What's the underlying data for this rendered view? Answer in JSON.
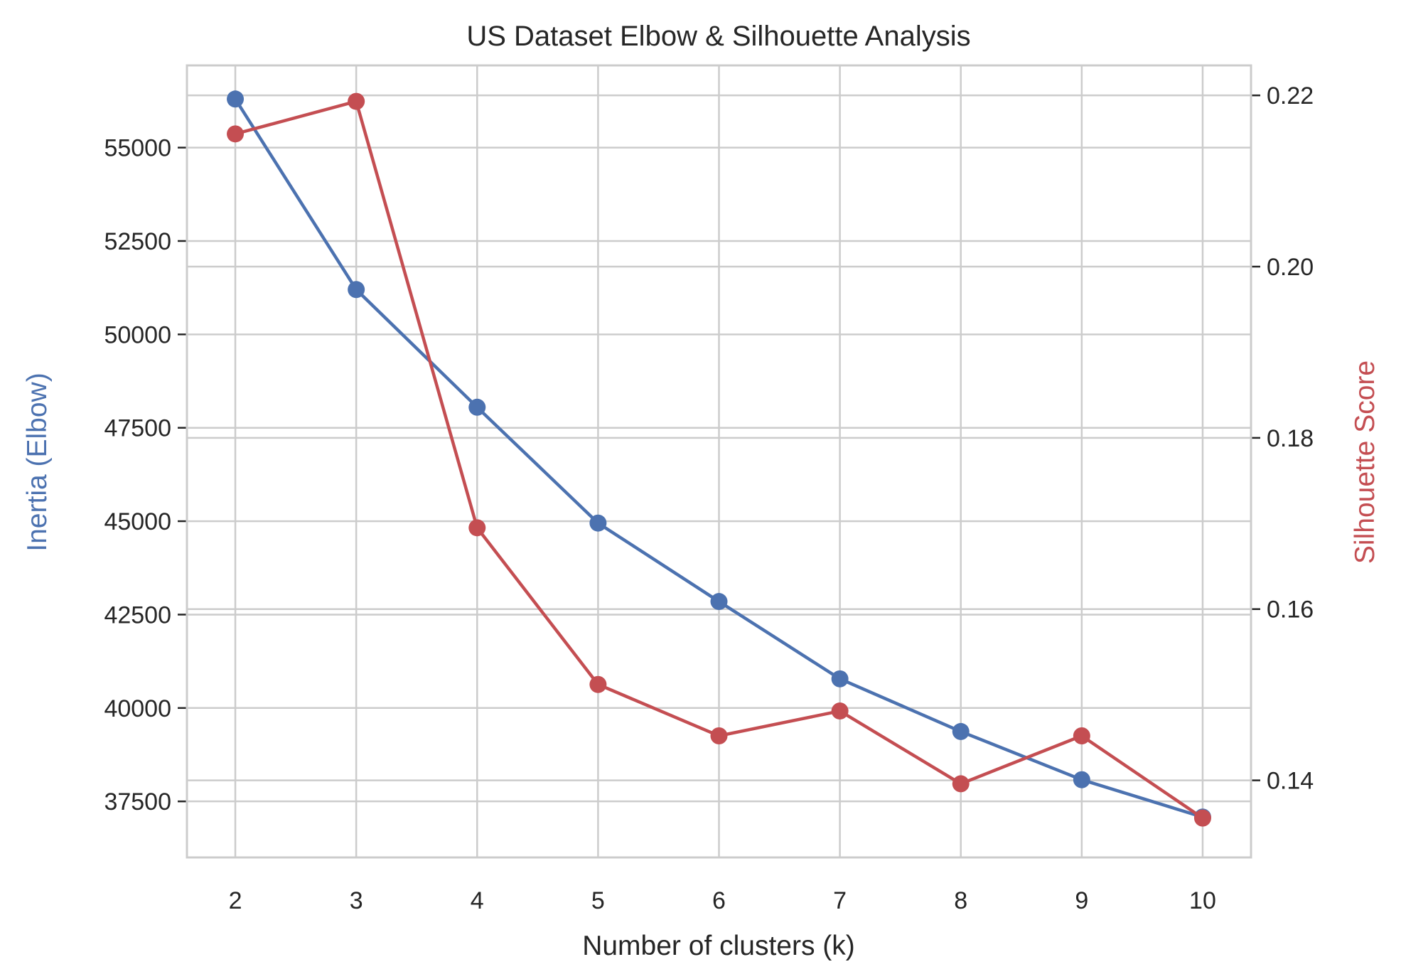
{
  "chart_data": {
    "type": "line",
    "title": "US Dataset Elbow & Silhouette Analysis",
    "xlabel": "Number of clusters (k)",
    "ylabel_left": "Inertia (Elbow)",
    "ylabel_right": "Silhouette Score",
    "x": [
      2,
      3,
      4,
      5,
      6,
      7,
      8,
      9,
      10
    ],
    "xlim": [
      1.6,
      10.4
    ],
    "series": [
      {
        "axis": "left",
        "color": "#4c72b0",
        "marker": "circle",
        "values": [
          56300,
          51200,
          48050,
          44950,
          42850,
          40780,
          39370,
          38080,
          37080
        ]
      },
      {
        "axis": "right",
        "color": "#c44e52",
        "marker": "circle",
        "values": [
          0.2155,
          0.2193,
          0.1695,
          0.1512,
          0.1452,
          0.1481,
          0.1396,
          0.1452,
          0.1356
        ]
      }
    ],
    "y_left": {
      "lim": [
        36000,
        57200
      ],
      "ticks": [
        37500,
        40000,
        42500,
        45000,
        47500,
        50000,
        52500,
        55000
      ],
      "tick_labels": [
        "37500",
        "40000",
        "42500",
        "45000",
        "47500",
        "50000",
        "52500",
        "55000"
      ],
      "label_color": "#4c72b0"
    },
    "y_right": {
      "lim": [
        0.131,
        0.2235
      ],
      "ticks": [
        0.14,
        0.16,
        0.18,
        0.2,
        0.22
      ],
      "tick_labels": [
        "0.14",
        "0.16",
        "0.18",
        "0.20",
        "0.22"
      ],
      "label_color": "#c44e52"
    },
    "grid": true,
    "legend": "none"
  }
}
